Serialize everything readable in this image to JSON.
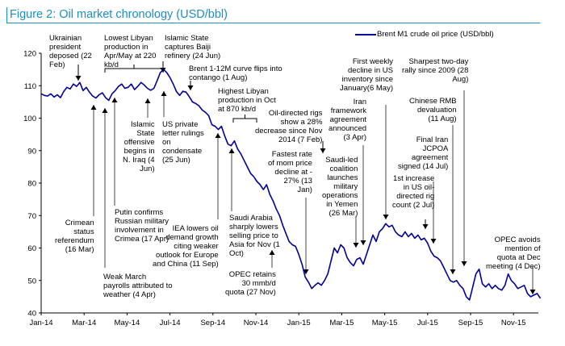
{
  "figure": {
    "title": "Figure 2: Oil market chronology (USD/bbl)"
  },
  "colors": {
    "title": "#1a8fc4",
    "series": "#000099",
    "arrow": "#000000",
    "axis": "#000000"
  },
  "chart_data": {
    "type": "line",
    "title": "Figure 2: Oil market chronology (USD/bbl)",
    "xlabel": "",
    "ylabel": "",
    "ylim": [
      40,
      120
    ],
    "yticks": [
      40,
      50,
      60,
      70,
      80,
      90,
      100,
      110,
      120
    ],
    "xlim_months": [
      0,
      23.3
    ],
    "xticks": [
      {
        "m": 0,
        "label": "Jan-14"
      },
      {
        "m": 2,
        "label": "Mar-14"
      },
      {
        "m": 4,
        "label": "May-14"
      },
      {
        "m": 6,
        "label": "Jul-14"
      },
      {
        "m": 8,
        "label": "Sep-14"
      },
      {
        "m": 10,
        "label": "Nov-14"
      },
      {
        "m": 12,
        "label": "Jan-15"
      },
      {
        "m": 14,
        "label": "Mar-15"
      },
      {
        "m": 16,
        "label": "May-15"
      },
      {
        "m": 18,
        "label": "Jul-15"
      },
      {
        "m": 20,
        "label": "Sep-15"
      },
      {
        "m": 22,
        "label": "Nov-15"
      }
    ],
    "legend": {
      "position": "top-right",
      "entries": [
        "Brent M1 crude oil price (USD/bbl)"
      ]
    },
    "grid": false,
    "series": [
      {
        "name": "Brent M1 crude oil price (USD/bbl)",
        "x_months": [
          0,
          0.15,
          0.3,
          0.45,
          0.6,
          0.75,
          0.9,
          1.05,
          1.2,
          1.35,
          1.5,
          1.65,
          1.8,
          1.95,
          2.1,
          2.25,
          2.4,
          2.55,
          2.7,
          2.85,
          3.0,
          3.15,
          3.3,
          3.45,
          3.6,
          3.75,
          3.9,
          4.05,
          4.2,
          4.35,
          4.5,
          4.65,
          4.8,
          4.95,
          5.1,
          5.25,
          5.4,
          5.55,
          5.7,
          5.85,
          6.0,
          6.15,
          6.3,
          6.45,
          6.6,
          6.75,
          6.9,
          7.05,
          7.2,
          7.35,
          7.5,
          7.65,
          7.8,
          7.95,
          8.1,
          8.25,
          8.4,
          8.55,
          8.7,
          8.85,
          9.0,
          9.15,
          9.3,
          9.45,
          9.6,
          9.75,
          9.9,
          10.05,
          10.2,
          10.35,
          10.5,
          10.65,
          10.8,
          10.95,
          11.1,
          11.25,
          11.4,
          11.55,
          11.7,
          11.85,
          12.0,
          12.15,
          12.3,
          12.45,
          12.6,
          12.75,
          12.9,
          13.05,
          13.2,
          13.35,
          13.5,
          13.65,
          13.8,
          13.95,
          14.1,
          14.25,
          14.4,
          14.55,
          14.7,
          14.85,
          15.0,
          15.15,
          15.3,
          15.45,
          15.6,
          15.75,
          15.9,
          16.05,
          16.2,
          16.35,
          16.5,
          16.65,
          16.8,
          16.95,
          17.1,
          17.25,
          17.4,
          17.55,
          17.7,
          17.85,
          18.0,
          18.15,
          18.3,
          18.45,
          18.6,
          18.75,
          18.9,
          19.05,
          19.2,
          19.35,
          19.5,
          19.65,
          19.8,
          19.95,
          20.1,
          20.25,
          20.4,
          20.55,
          20.7,
          20.85,
          21.0,
          21.15,
          21.3,
          21.45,
          21.6,
          21.75,
          21.9,
          22.05,
          22.2,
          22.35,
          22.5,
          22.65,
          22.8,
          22.95,
          23.1,
          23.25
        ],
        "values": [
          107.5,
          107,
          106.8,
          107.5,
          106.5,
          107.2,
          106.3,
          108.2,
          109.5,
          109,
          110.5,
          109.8,
          111,
          108.5,
          109.5,
          108,
          106.8,
          106.2,
          107.2,
          107.8,
          106.3,
          105.5,
          107.5,
          108.5,
          109.8,
          110.5,
          109.2,
          109.5,
          110.5,
          108.8,
          109.8,
          111,
          110.2,
          109.2,
          108.6,
          109.2,
          111.5,
          114,
          115,
          114,
          112.5,
          110.5,
          108.2,
          107,
          108.3,
          108,
          106.6,
          105,
          104.5,
          103.8,
          102.5,
          101.8,
          100.8,
          98,
          97.5,
          96.5,
          97.5,
          94.5,
          92,
          91.5,
          93,
          90.5,
          89,
          87,
          85,
          83,
          82,
          80.5,
          79.5,
          78,
          79.5,
          76.5,
          74.5,
          72,
          70,
          67,
          64.5,
          62,
          61,
          60.5,
          58,
          55,
          51,
          49.5,
          47.5,
          48.5,
          49.3,
          48.5,
          50,
          52,
          56,
          60,
          58.5,
          61,
          60,
          57,
          55.5,
          54.5,
          56.5,
          57,
          55,
          58,
          61,
          64,
          62,
          65,
          66,
          67.5,
          66.5,
          67,
          65,
          64,
          63.5,
          65,
          63.5,
          64.5,
          63,
          64,
          62.5,
          63,
          61.5,
          59,
          57.5,
          57,
          56,
          54,
          52,
          50,
          49.5,
          50,
          48.5,
          47.5,
          45,
          44,
          48,
          52,
          53.5,
          49,
          48,
          49,
          47.5,
          48.5,
          47.5,
          47,
          48.5,
          52,
          50,
          49,
          47.5,
          48,
          48.5,
          46,
          45,
          45.5,
          46,
          44.5,
          43,
          41
        ],
        "note": "values are approximate daily/weekly readings estimated from the rendered line"
      }
    ],
    "annotations": [
      {
        "id": "ukraine",
        "text": "Ukrainian\npresident\ndeposed (22\nFeb)",
        "date_m": 1.7,
        "arrow": "down"
      },
      {
        "id": "crimea-ref",
        "text": "Crimean\nstatus\nreferendum\n(16 Mar)",
        "date_m": 2.5,
        "arrow": "up"
      },
      {
        "id": "putin",
        "text": "Putin confirms\nRussian military\ninvolvement in\nCrimea (17 Apr)",
        "date_m": 3.55,
        "arrow": "up"
      },
      {
        "id": "weak-march",
        "text": "Weak March\npayrolls attributed to\nweather (4 Apr)",
        "date_m": 3.1,
        "arrow": "up"
      },
      {
        "id": "libya-low",
        "text": "Lowest Libyan\nproduction in\nApr/May at 220\nkb/d",
        "date_m": 4.3,
        "arrow": "bracket"
      },
      {
        "id": "is-iraq",
        "text": "Islamic\nState\noffensive\nbegins in\nN. Iraq (4\nJun)",
        "date_m": 5.1,
        "arrow": "up"
      },
      {
        "id": "is-baiji",
        "text": "Islamic State\ncaptures Baiji\nrefinery (24 Jun)",
        "date_m": 5.75,
        "arrow": "down"
      },
      {
        "id": "us-letter",
        "text": "US private\nletter rulings\non\ncondensate\n(25 Jun)",
        "date_m": 5.8,
        "arrow": "up"
      },
      {
        "id": "contango",
        "text": "Brent 1-12M curve flips into\ncontango (1 Aug)",
        "date_m": 7.0,
        "arrow": "down"
      },
      {
        "id": "iea",
        "text": "IEA lowers oil\ndemand growth\nciting weaker\noutlook for Europe\nand China (11 Sep)",
        "date_m": 8.35,
        "arrow": "up"
      },
      {
        "id": "libya-high",
        "text": "Highest Libyan\nproduction in Oct\nat 870 kb/d",
        "date_m": 9.5,
        "arrow": "bracket"
      },
      {
        "id": "saudi-asia",
        "text": "Saudi Arabia\nsharply lowers\nselling price to\nAsia for Nov (1\nOct)",
        "date_m": 9.0,
        "arrow": "up"
      },
      {
        "id": "opec-nov",
        "text": "OPEC retains\n30 mmb/d\nquota (27 Nov)",
        "date_m": 10.9,
        "arrow": "up"
      },
      {
        "id": "rigs-feb",
        "text": "Oil-directed rigs\nshow a 28%\ndecrease since Nov\n2014 (7 Feb)",
        "date_m": 13.2,
        "arrow": "down"
      },
      {
        "id": "fastest-rate",
        "text": "Fastest rate\nof mom price\ndecline at -\n27% (13\nJan)",
        "date_m": 12.4,
        "arrow": "down"
      },
      {
        "id": "saudi-yemen",
        "text": "Saudi-led\ncoalition\nlaunches\nmilitary\noperations\nin Yemen\n(26 Mar)",
        "date_m": 14.85,
        "arrow": "down"
      },
      {
        "id": "iran-framework",
        "text": "Iran\nframework\nagreement\nannounced\n(3 Apr)",
        "date_m": 15.05,
        "arrow": "down"
      },
      {
        "id": "us-inventory",
        "text": "First weekly\ndecline in US\ninventory since\nJanuary(6 May)",
        "date_m": 16.2,
        "arrow": "down"
      },
      {
        "id": "rig-increase",
        "text": "1st increase\nin US oil-\ndirected rig\ncount (2 Jul)",
        "date_m": 18.05,
        "arrow": "down"
      },
      {
        "id": "jcpoa",
        "text": "Final Iran\nJCPOA\nagreement\nsigned (14 Jul)",
        "date_m": 18.45,
        "arrow": "down"
      },
      {
        "id": "rmb",
        "text": "Chinese RMB\ndevaluation\n(11 Aug)",
        "date_m": 19.35,
        "arrow": "down"
      },
      {
        "id": "rally",
        "text": "Sharpest two-day\nrally since 2009 (28\nAug)",
        "date_m": 19.9,
        "arrow": "down"
      },
      {
        "id": "opec-dec",
        "text": "OPEC avoids\nmention of\nquota at Dec\nmeeting (4 Dec)",
        "date_m": 23.1,
        "arrow": "down"
      }
    ]
  }
}
